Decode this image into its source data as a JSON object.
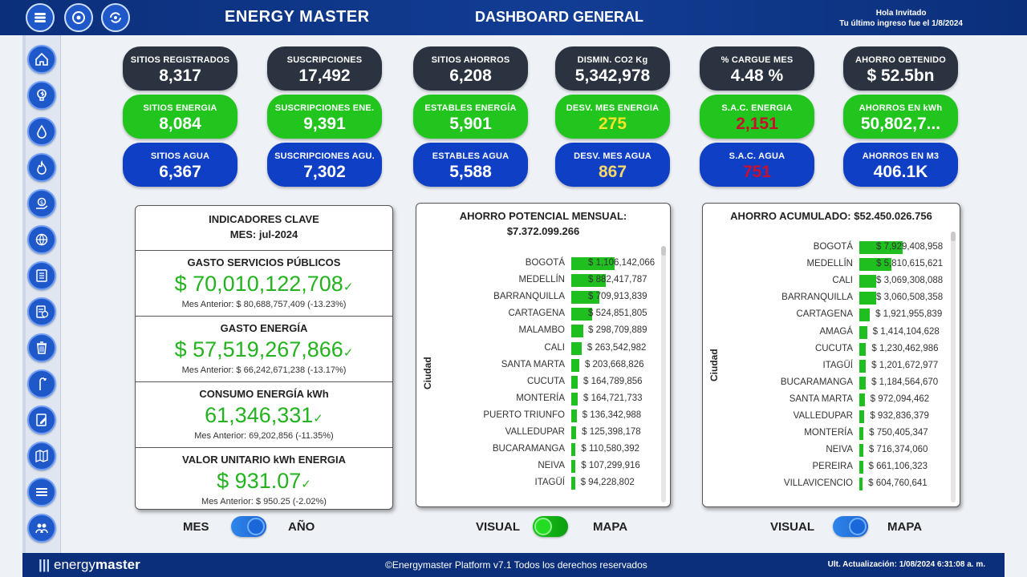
{
  "header": {
    "app_title": "ENERGY MASTER",
    "page_title": "DASHBOARD GENERAL",
    "greeting": "Hola Invitado",
    "last_login": "Tu último ingreso fue el 1/8/2024",
    "top_icons": [
      "menu-icon",
      "settings-cycle-icon",
      "refresh-cycle-icon"
    ]
  },
  "sidebar": {
    "icons": [
      "home-icon",
      "energy-bulb-icon",
      "water-drop-icon",
      "gas-flame-icon",
      "money-hand-icon",
      "globe-gear-icon",
      "checklist-icon",
      "invoice-icon",
      "trash-icon",
      "street-light-icon",
      "edit-document-icon",
      "map-icon",
      "list-menu-icon",
      "settings-people-icon"
    ]
  },
  "kpis": [
    {
      "label": "SITIOS REGISTRADOS",
      "value": "8,317"
    },
    {
      "label": "SUSCRIPCIONES",
      "value": "17,492"
    },
    {
      "label": "SITIOS AHORROS",
      "value": "6,208"
    },
    {
      "label": "DISMIN. CO2 Kg",
      "value": "5,342,978"
    },
    {
      "label": "% CARGUE MES",
      "value": "4.48 %"
    },
    {
      "label": "AHORRO OBTENIDO",
      "value": "$ 52.5bn"
    },
    {
      "label": "SITIOS ENERGIA",
      "value": "8,084"
    },
    {
      "label": "SUSCRIPCIONES ENE.",
      "value": "9,391"
    },
    {
      "label": "ESTABLES ENERGÍA",
      "value": "5,901"
    },
    {
      "label": "DESV. MES ENERGIA",
      "value": "275"
    },
    {
      "label": "S.A.C. ENERGIA",
      "value": "2,151"
    },
    {
      "label": "AHORROS EN kWh",
      "value": "50,802,7..."
    },
    {
      "label": "SITIOS AGUA",
      "value": "6,367"
    },
    {
      "label": "SUSCRIPCIONES AGU.",
      "value": "7,302"
    },
    {
      "label": "ESTABLES AGUA",
      "value": "5,588"
    },
    {
      "label": "DESV. MES AGUA",
      "value": "867"
    },
    {
      "label": "S.A.C. AGUA",
      "value": "751"
    },
    {
      "label": "AHORROS EN M3",
      "value": "406.1K"
    }
  ],
  "kpi_colors": {
    "dark": "#2b3340",
    "green": "#22c41e",
    "blue": "#0f3fc4",
    "yellow_value": "#f5e52a",
    "red_value": "#c8102e"
  },
  "indicators": {
    "title": "INDICADORES CLAVE",
    "month": "MES: jul-2024",
    "items": [
      {
        "title": "GASTO SERVICIOS PÚBLICOS",
        "value": "$ 70,010,122,708",
        "previous": "Mes Anterior: $ 80,688,757,409 (-13.23%)"
      },
      {
        "title": "GASTO ENERGÍA",
        "value": "$ 57,519,267,866",
        "previous": "Mes Anterior: $ 66,242,671,238 (-13.17%)"
      },
      {
        "title": "CONSUMO ENERGÍA kWh",
        "value": "61,346,331",
        "previous": "Mes Anterior: 69,202,856 (-11.35%)"
      },
      {
        "title": "VALOR UNITARIO kWh ENERGIA",
        "value": "$ 931.07",
        "previous": "Mes Anterior: $ 950.25 (-2.02%)"
      }
    ],
    "check_mark": "✓"
  },
  "chart_data": [
    {
      "type": "bar",
      "title": "AHORRO POTENCIAL MENSUAL:",
      "subtitle": "$7.372.099.266",
      "ylabel": "Ciudad",
      "categories": [
        "BOGOTÁ",
        "MEDELLÍN",
        "BARRANQUILLA",
        "CARTAGENA",
        "MALAMBO",
        "CALI",
        "SANTA MARTA",
        "CUCUTA",
        "MONTERÍA",
        "PUERTO TRIUNFO",
        "VALLEDUPAR",
        "BUCARAMANGA",
        "NEIVA",
        "ITAGÜÍ"
      ],
      "values": [
        1106142066,
        882417787,
        709913839,
        524851805,
        298709889,
        263542982,
        203668826,
        164789856,
        164721733,
        136342988,
        125398178,
        110580392,
        107299916,
        94228802
      ],
      "labels": [
        "$ 1,106,142,066",
        "$ 882,417,787",
        "$ 709,913,839",
        "$ 524,851,805",
        "$ 298,709,889",
        "$ 263,542,982",
        "$ 203,668,826",
        "$ 164,789,856",
        "$ 164,721,733",
        "$ 136,342,988",
        "$ 125,398,178",
        "$ 110,580,392",
        "$ 107,299,916",
        "$ 94,228,802"
      ],
      "color": "#1fbf1f"
    },
    {
      "type": "bar",
      "title": "AHORRO ACUMULADO: $52.450.026.756",
      "ylabel": "Ciudad",
      "categories": [
        "BOGOTÁ",
        "MEDELLÍN",
        "CALI",
        "BARRANQUILLA",
        "CARTAGENA",
        "AMAGÁ",
        "CUCUTA",
        "ITAGÜÍ",
        "BUCARAMANGA",
        "SANTA MARTA",
        "VALLEDUPAR",
        "MONTERÍA",
        "NEIVA",
        "PEREIRA",
        "VILLAVICENCIO"
      ],
      "values": [
        7929408958,
        5810615621,
        3069308088,
        3060508358,
        1921955839,
        1414104628,
        1230462986,
        1201672977,
        1184564670,
        972094462,
        932836379,
        750405347,
        716374060,
        661106323,
        604760641
      ],
      "labels": [
        "$ 7,929,408,958",
        "$ 5,810,615,621",
        "$ 3,069,308,088",
        "$ 3,060,508,358",
        "$ 1,921,955,839",
        "$ 1,414,104,628",
        "$ 1,230,462,986",
        "$ 1,201,672,977",
        "$ 1,184,564,670",
        "$ 972,094,462",
        "$ 932,836,379",
        "$ 750,405,347",
        "$ 716,374,060",
        "$ 661,106,323",
        "$ 604,760,641"
      ],
      "color": "#1fbf1f"
    }
  ],
  "toggles": [
    {
      "left": "MES",
      "right": "AÑO",
      "state": "right"
    },
    {
      "left": "VISUAL",
      "right": "MAPA",
      "state": "right"
    },
    {
      "left": "VISUAL",
      "right": "MAPA",
      "state": "right"
    }
  ],
  "footer": {
    "logo_prefix": "energy",
    "logo_suffix": "master",
    "copyright": "©Energymaster Platform v7.1 Todos los derechos reservados",
    "updated": "Ult. Actualización: 1/08/2024 6:31:08 a. m."
  }
}
